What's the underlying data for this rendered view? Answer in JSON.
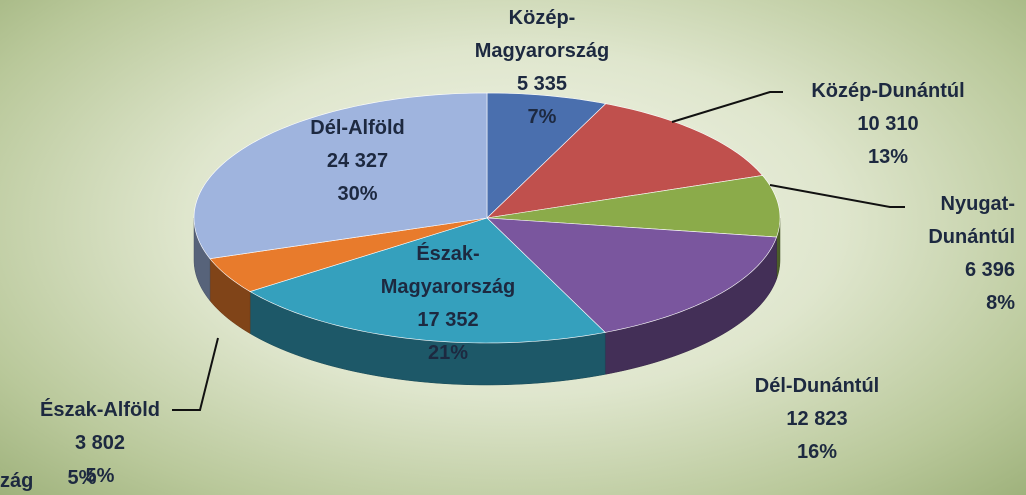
{
  "chart_data": {
    "type": "pie",
    "categories": [
      "Közép-Magyarország",
      "Közép-Dunántúl",
      "Nyugat-Dunántúl",
      "Dél-Dunántúl",
      "Észak-Magyarország",
      "Észak-Alföld",
      "Dél-Alföld"
    ],
    "values": [
      5335,
      10310,
      6396,
      12823,
      17352,
      3802,
      24327
    ],
    "value_labels": [
      "5 335",
      "10 310",
      "6 396",
      "12 823",
      "17 352",
      "3 802",
      "24 327"
    ],
    "percent_labels": [
      "7%",
      "13%",
      "8%",
      "16%",
      "21%",
      "5%",
      "30%"
    ],
    "colors": [
      "#4a6fae",
      "#c0504d",
      "#8bab4a",
      "#7a569e",
      "#35a0bd",
      "#e87b2c",
      "#9fb4de"
    ],
    "cut_off_labels": [
      "zág",
      "5%"
    ]
  }
}
